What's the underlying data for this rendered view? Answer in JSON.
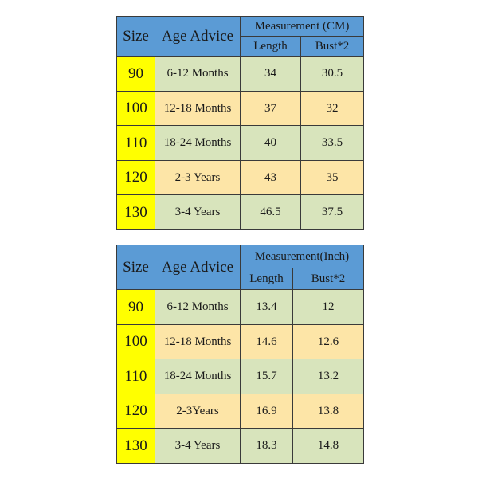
{
  "table_cm": {
    "header": {
      "size": "Size",
      "age": "Age Advice",
      "measurement": "Measurement (CM)",
      "length": "Length",
      "bust": "Bust*2"
    },
    "rows": [
      {
        "size": "90",
        "age": "6-12 Months",
        "length": "34",
        "bust": "30.5"
      },
      {
        "size": "100",
        "age": "12-18 Months",
        "length": "37",
        "bust": "32"
      },
      {
        "size": "110",
        "age": "18-24 Months",
        "length": "40",
        "bust": "33.5"
      },
      {
        "size": "120",
        "age": "2-3 Years",
        "length": "43",
        "bust": "35"
      },
      {
        "size": "130",
        "age": "3-4 Years",
        "length": "46.5",
        "bust": "37.5"
      }
    ]
  },
  "table_inch": {
    "header": {
      "size": "Size",
      "age": "Age Advice",
      "measurement": "Measurement(Inch)",
      "length": "Length",
      "bust": "Bust*2"
    },
    "rows": [
      {
        "size": "90",
        "age": "6-12 Months",
        "length": "13.4",
        "bust": "12"
      },
      {
        "size": "100",
        "age": "12-18 Months",
        "length": "14.6",
        "bust": "12.6"
      },
      {
        "size": "110",
        "age": "18-24 Months",
        "length": "15.7",
        "bust": "13.2"
      },
      {
        "size": "120",
        "age": "2-3Years",
        "length": "16.9",
        "bust": "13.8"
      },
      {
        "size": "130",
        "age": "3-4 Years",
        "length": "18.3",
        "bust": "14.8"
      }
    ]
  },
  "colors": {
    "header": "#5b9bd5",
    "size_column": "#ffff00",
    "row_green": "#d8e4bc",
    "row_orange": "#fde5a7"
  }
}
